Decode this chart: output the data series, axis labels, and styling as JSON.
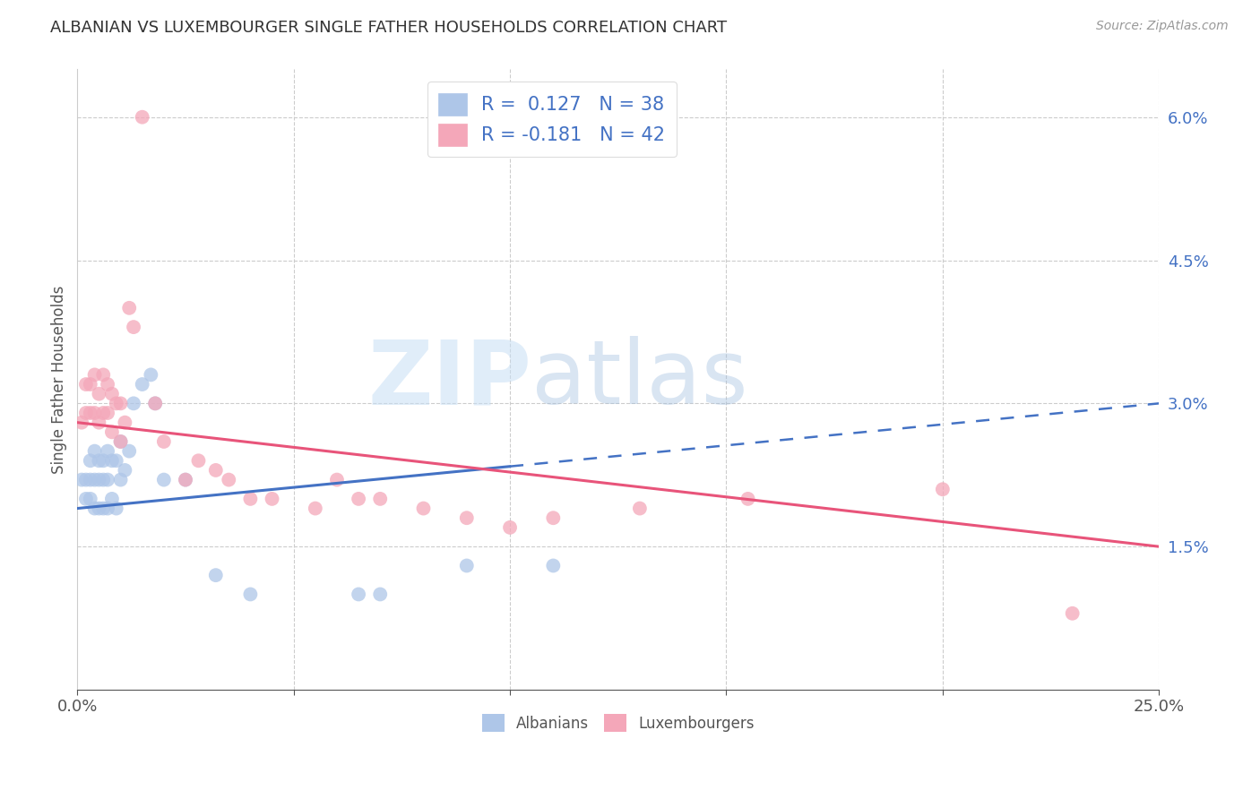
{
  "title": "ALBANIAN VS LUXEMBOURGER SINGLE FATHER HOUSEHOLDS CORRELATION CHART",
  "source": "Source: ZipAtlas.com",
  "ylabel": "Single Father Households",
  "xlim": [
    0.0,
    0.25
  ],
  "ylim": [
    0.0,
    0.065
  ],
  "albanian_R": 0.127,
  "albanian_N": 38,
  "luxembourger_R": -0.181,
  "luxembourger_N": 42,
  "albanian_color": "#aec6e8",
  "luxembourger_color": "#f4a7b9",
  "albanian_line_color": "#4472c4",
  "luxembourger_line_color": "#e8547a",
  "watermark_zip": "ZIP",
  "watermark_atlas": "atlas",
  "albanian_x": [
    0.001,
    0.002,
    0.002,
    0.003,
    0.003,
    0.003,
    0.004,
    0.004,
    0.004,
    0.005,
    0.005,
    0.005,
    0.006,
    0.006,
    0.006,
    0.007,
    0.007,
    0.007,
    0.008,
    0.008,
    0.009,
    0.009,
    0.01,
    0.01,
    0.011,
    0.012,
    0.013,
    0.015,
    0.017,
    0.018,
    0.02,
    0.025,
    0.032,
    0.04,
    0.065,
    0.07,
    0.09,
    0.11
  ],
  "albanian_y": [
    0.022,
    0.022,
    0.02,
    0.024,
    0.022,
    0.02,
    0.025,
    0.022,
    0.019,
    0.024,
    0.022,
    0.019,
    0.024,
    0.022,
    0.019,
    0.025,
    0.022,
    0.019,
    0.024,
    0.02,
    0.024,
    0.019,
    0.026,
    0.022,
    0.023,
    0.025,
    0.03,
    0.032,
    0.033,
    0.03,
    0.022,
    0.022,
    0.012,
    0.01,
    0.01,
    0.01,
    0.013,
    0.013
  ],
  "luxembourger_x": [
    0.001,
    0.002,
    0.002,
    0.003,
    0.003,
    0.004,
    0.004,
    0.005,
    0.005,
    0.006,
    0.006,
    0.007,
    0.007,
    0.008,
    0.008,
    0.009,
    0.01,
    0.01,
    0.011,
    0.012,
    0.013,
    0.015,
    0.018,
    0.02,
    0.025,
    0.028,
    0.032,
    0.035,
    0.04,
    0.045,
    0.055,
    0.06,
    0.065,
    0.07,
    0.08,
    0.09,
    0.1,
    0.11,
    0.13,
    0.155,
    0.2,
    0.23
  ],
  "luxembourger_y": [
    0.028,
    0.032,
    0.029,
    0.032,
    0.029,
    0.033,
    0.029,
    0.031,
    0.028,
    0.033,
    0.029,
    0.032,
    0.029,
    0.031,
    0.027,
    0.03,
    0.03,
    0.026,
    0.028,
    0.04,
    0.038,
    0.06,
    0.03,
    0.026,
    0.022,
    0.024,
    0.023,
    0.022,
    0.02,
    0.02,
    0.019,
    0.022,
    0.02,
    0.02,
    0.019,
    0.018,
    0.017,
    0.018,
    0.019,
    0.02,
    0.021,
    0.008
  ],
  "alb_line_x0": 0.0,
  "alb_line_x_solid_end": 0.1,
  "alb_line_x1": 0.25,
  "alb_line_y0": 0.019,
  "alb_line_y1": 0.03,
  "lux_line_x0": 0.0,
  "lux_line_x1": 0.25,
  "lux_line_y0": 0.028,
  "lux_line_y1": 0.015
}
